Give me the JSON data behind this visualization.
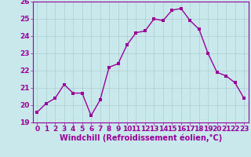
{
  "x": [
    0,
    1,
    2,
    3,
    4,
    5,
    6,
    7,
    8,
    9,
    10,
    11,
    12,
    13,
    14,
    15,
    16,
    17,
    18,
    19,
    20,
    21,
    22,
    23
  ],
  "y": [
    19.6,
    20.1,
    20.4,
    21.2,
    20.7,
    20.7,
    19.4,
    20.3,
    22.2,
    22.4,
    23.5,
    24.2,
    24.3,
    25.0,
    24.9,
    25.5,
    25.6,
    24.9,
    24.4,
    23.0,
    21.9,
    21.7,
    21.3,
    20.4
  ],
  "line_color": "#990099",
  "marker_color": "#990099",
  "bg_color": "#c8e8ec",
  "grid_color": "#aacdd4",
  "xlabel": "Windchill (Refroidissement éolien,°C)",
  "ylim": [
    19,
    26
  ],
  "xlim": [
    -0.5,
    23.5
  ],
  "yticks": [
    19,
    20,
    21,
    22,
    23,
    24,
    25,
    26
  ],
  "xticks": [
    0,
    1,
    2,
    3,
    4,
    5,
    6,
    7,
    8,
    9,
    10,
    11,
    12,
    13,
    14,
    15,
    16,
    17,
    18,
    19,
    20,
    21,
    22,
    23
  ],
  "tick_color": "#990099",
  "label_color": "#990099",
  "xlabel_fontsize": 7,
  "tick_fontsize": 6.5,
  "marker_size": 2.5,
  "line_width": 1.0
}
